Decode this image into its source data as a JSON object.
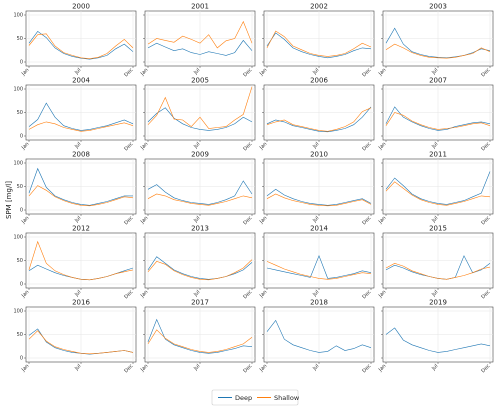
{
  "figure": {
    "ylabel": "SPM [mg/l]",
    "colors": {
      "deep": "#1f77b4",
      "shallow": "#ff7f0e"
    },
    "legend": {
      "placement": "bottom-center",
      "entries": [
        "Deep",
        "Shallow"
      ]
    }
  },
  "chart_data": {
    "type": "line",
    "ylabel": "SPM [mg/l]",
    "ylim": [
      0,
      100
    ],
    "yticks": [
      "0",
      "50",
      "100"
    ],
    "xticks": [
      "Jan",
      "Jul",
      "Dec"
    ],
    "grid": true,
    "panels": [
      {
        "title": "2000",
        "deep": [
          40,
          65,
          52,
          30,
          18,
          12,
          8,
          6,
          9,
          14,
          28,
          38,
          22
        ],
        "shallow": [
          35,
          58,
          60,
          34,
          20,
          14,
          9,
          7,
          10,
          18,
          34,
          48,
          30
        ]
      },
      {
        "title": "2001",
        "deep": [
          30,
          40,
          32,
          24,
          28,
          20,
          16,
          22,
          18,
          14,
          20,
          46,
          24
        ],
        "shallow": [
          38,
          50,
          46,
          42,
          55,
          48,
          40,
          58,
          30,
          45,
          50,
          86,
          40
        ]
      },
      {
        "title": "2002",
        "deep": [
          34,
          62,
          48,
          30,
          22,
          16,
          12,
          9,
          12,
          16,
          24,
          30,
          28
        ],
        "shallow": [
          30,
          66,
          54,
          34,
          26,
          18,
          14,
          12,
          14,
          18,
          28,
          40,
          32
        ]
      },
      {
        "title": "2003",
        "deep": [
          40,
          72,
          38,
          22,
          16,
          12,
          10,
          9,
          11,
          14,
          20,
          28,
          24
        ],
        "shallow": [
          26,
          38,
          30,
          20,
          14,
          10,
          9,
          8,
          10,
          14,
          18,
          30,
          22
        ]
      },
      {
        "title": "2004",
        "deep": [
          20,
          35,
          70,
          40,
          22,
          16,
          12,
          14,
          18,
          22,
          28,
          34,
          26
        ],
        "shallow": [
          14,
          24,
          30,
          26,
          18,
          14,
          10,
          12,
          16,
          20,
          24,
          28,
          22
        ]
      },
      {
        "title": "2005",
        "deep": [
          30,
          48,
          60,
          38,
          26,
          18,
          14,
          12,
          14,
          18,
          26,
          40,
          30
        ],
        "shallow": [
          24,
          44,
          82,
          36,
          34,
          20,
          40,
          16,
          18,
          20,
          34,
          46,
          105
        ]
      },
      {
        "title": "2006",
        "deep": [
          26,
          34,
          30,
          22,
          18,
          14,
          10,
          9,
          12,
          16,
          24,
          40,
          62
        ],
        "shallow": [
          24,
          30,
          34,
          24,
          20,
          16,
          12,
          10,
          14,
          20,
          30,
          52,
          60
        ]
      },
      {
        "title": "2007",
        "deep": [
          26,
          62,
          40,
          30,
          22,
          16,
          12,
          14,
          20,
          24,
          28,
          30,
          26
        ],
        "shallow": [
          22,
          50,
          44,
          32,
          24,
          18,
          14,
          16,
          18,
          22,
          26,
          28,
          22
        ]
      },
      {
        "title": "2008",
        "deep": [
          36,
          88,
          48,
          30,
          22,
          16,
          12,
          10,
          14,
          18,
          24,
          30,
          30
        ],
        "shallow": [
          30,
          52,
          42,
          28,
          20,
          14,
          10,
          9,
          12,
          16,
          22,
          28,
          26
        ]
      },
      {
        "title": "2009",
        "deep": [
          44,
          54,
          38,
          26,
          20,
          16,
          14,
          12,
          16,
          22,
          30,
          62,
          34
        ],
        "shallow": [
          24,
          34,
          30,
          22,
          18,
          14,
          12,
          10,
          14,
          18,
          24,
          30,
          26
        ]
      },
      {
        "title": "2010",
        "deep": [
          30,
          44,
          32,
          24,
          18,
          14,
          12,
          10,
          12,
          16,
          20,
          24,
          14
        ],
        "shallow": [
          24,
          34,
          26,
          20,
          16,
          12,
          10,
          9,
          10,
          14,
          18,
          22,
          12
        ]
      },
      {
        "title": "2011",
        "deep": [
          44,
          68,
          52,
          34,
          24,
          18,
          14,
          12,
          16,
          20,
          28,
          36,
          82
        ],
        "shallow": [
          40,
          60,
          46,
          32,
          22,
          16,
          12,
          10,
          14,
          18,
          24,
          30,
          28
        ]
      },
      {
        "title": "2012",
        "deep": [
          28,
          40,
          32,
          24,
          18,
          14,
          10,
          9,
          12,
          16,
          22,
          28,
          34
        ],
        "shallow": [
          30,
          90,
          44,
          28,
          20,
          14,
          10,
          9,
          12,
          16,
          22,
          26,
          30
        ]
      },
      {
        "title": "2013",
        "deep": [
          30,
          58,
          44,
          30,
          22,
          16,
          12,
          10,
          12,
          16,
          22,
          30,
          46
        ],
        "shallow": [
          26,
          48,
          42,
          28,
          20,
          14,
          10,
          9,
          12,
          16,
          24,
          34,
          52
        ]
      },
      {
        "title": "2014",
        "deep": [
          34,
          30,
          26,
          22,
          18,
          14,
          60,
          12,
          14,
          18,
          22,
          28,
          24
        ],
        "shallow": [
          48,
          40,
          32,
          26,
          20,
          16,
          12,
          10,
          12,
          16,
          20,
          24,
          22
        ]
      },
      {
        "title": "2015",
        "deep": [
          30,
          40,
          34,
          26,
          20,
          16,
          12,
          10,
          14,
          60,
          24,
          30,
          44
        ],
        "shallow": [
          34,
          44,
          38,
          28,
          22,
          16,
          12,
          10,
          14,
          18,
          24,
          32,
          36
        ]
      },
      {
        "title": "2016",
        "deep": [
          48,
          62,
          34,
          22,
          16,
          12,
          10,
          8,
          10,
          12,
          14,
          16,
          12
        ],
        "shallow": [
          40,
          58,
          36,
          24,
          18,
          14,
          10,
          9,
          10,
          12,
          14,
          16,
          12
        ]
      },
      {
        "title": "2017",
        "deep": [
          34,
          82,
          40,
          28,
          22,
          16,
          12,
          10,
          12,
          16,
          20,
          26,
          24
        ],
        "shallow": [
          30,
          60,
          42,
          30,
          24,
          18,
          14,
          12,
          14,
          18,
          24,
          30,
          44
        ]
      },
      {
        "title": "2018",
        "deep": [
          56,
          80,
          40,
          28,
          22,
          16,
          12,
          14,
          26,
          16,
          20,
          28,
          22
        ],
        "shallow": []
      },
      {
        "title": "2019",
        "deep": [
          50,
          64,
          38,
          28,
          22,
          16,
          12,
          14,
          18,
          22,
          26,
          30,
          26
        ],
        "shallow": []
      }
    ]
  }
}
